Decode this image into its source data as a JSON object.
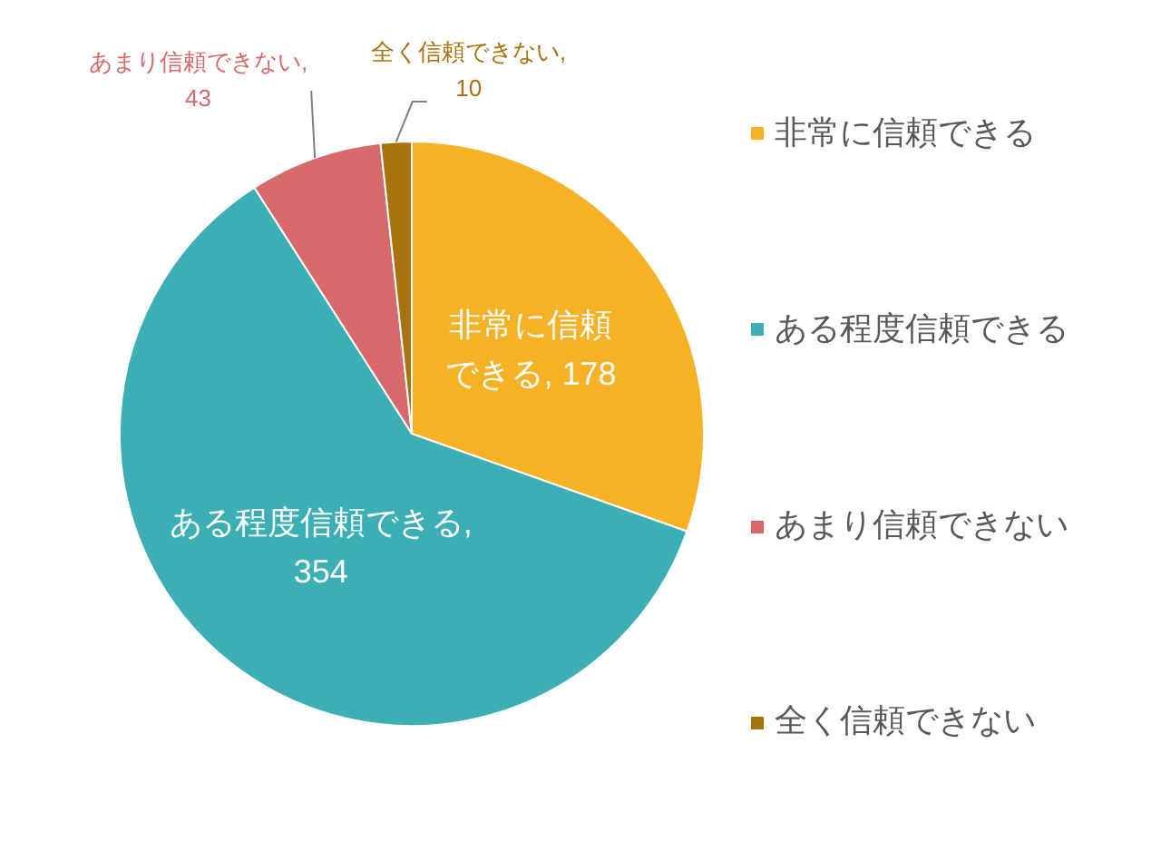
{
  "chart_data": {
    "type": "pie",
    "categories": [
      "非常に信頼できる",
      "ある程度信頼できる",
      "あまり信頼できない",
      "全く信頼できない"
    ],
    "values": [
      178,
      354,
      43,
      10
    ],
    "colors": [
      "#F6B125",
      "#3BAFB4",
      "#D7696A",
      "#A8730F"
    ],
    "value_labels": [
      "非常に信頼できる, 178",
      "ある程度信頼できる, 354",
      "あまり信頼できない, 43",
      "全く信頼できない, 10"
    ],
    "legend": "right"
  }
}
